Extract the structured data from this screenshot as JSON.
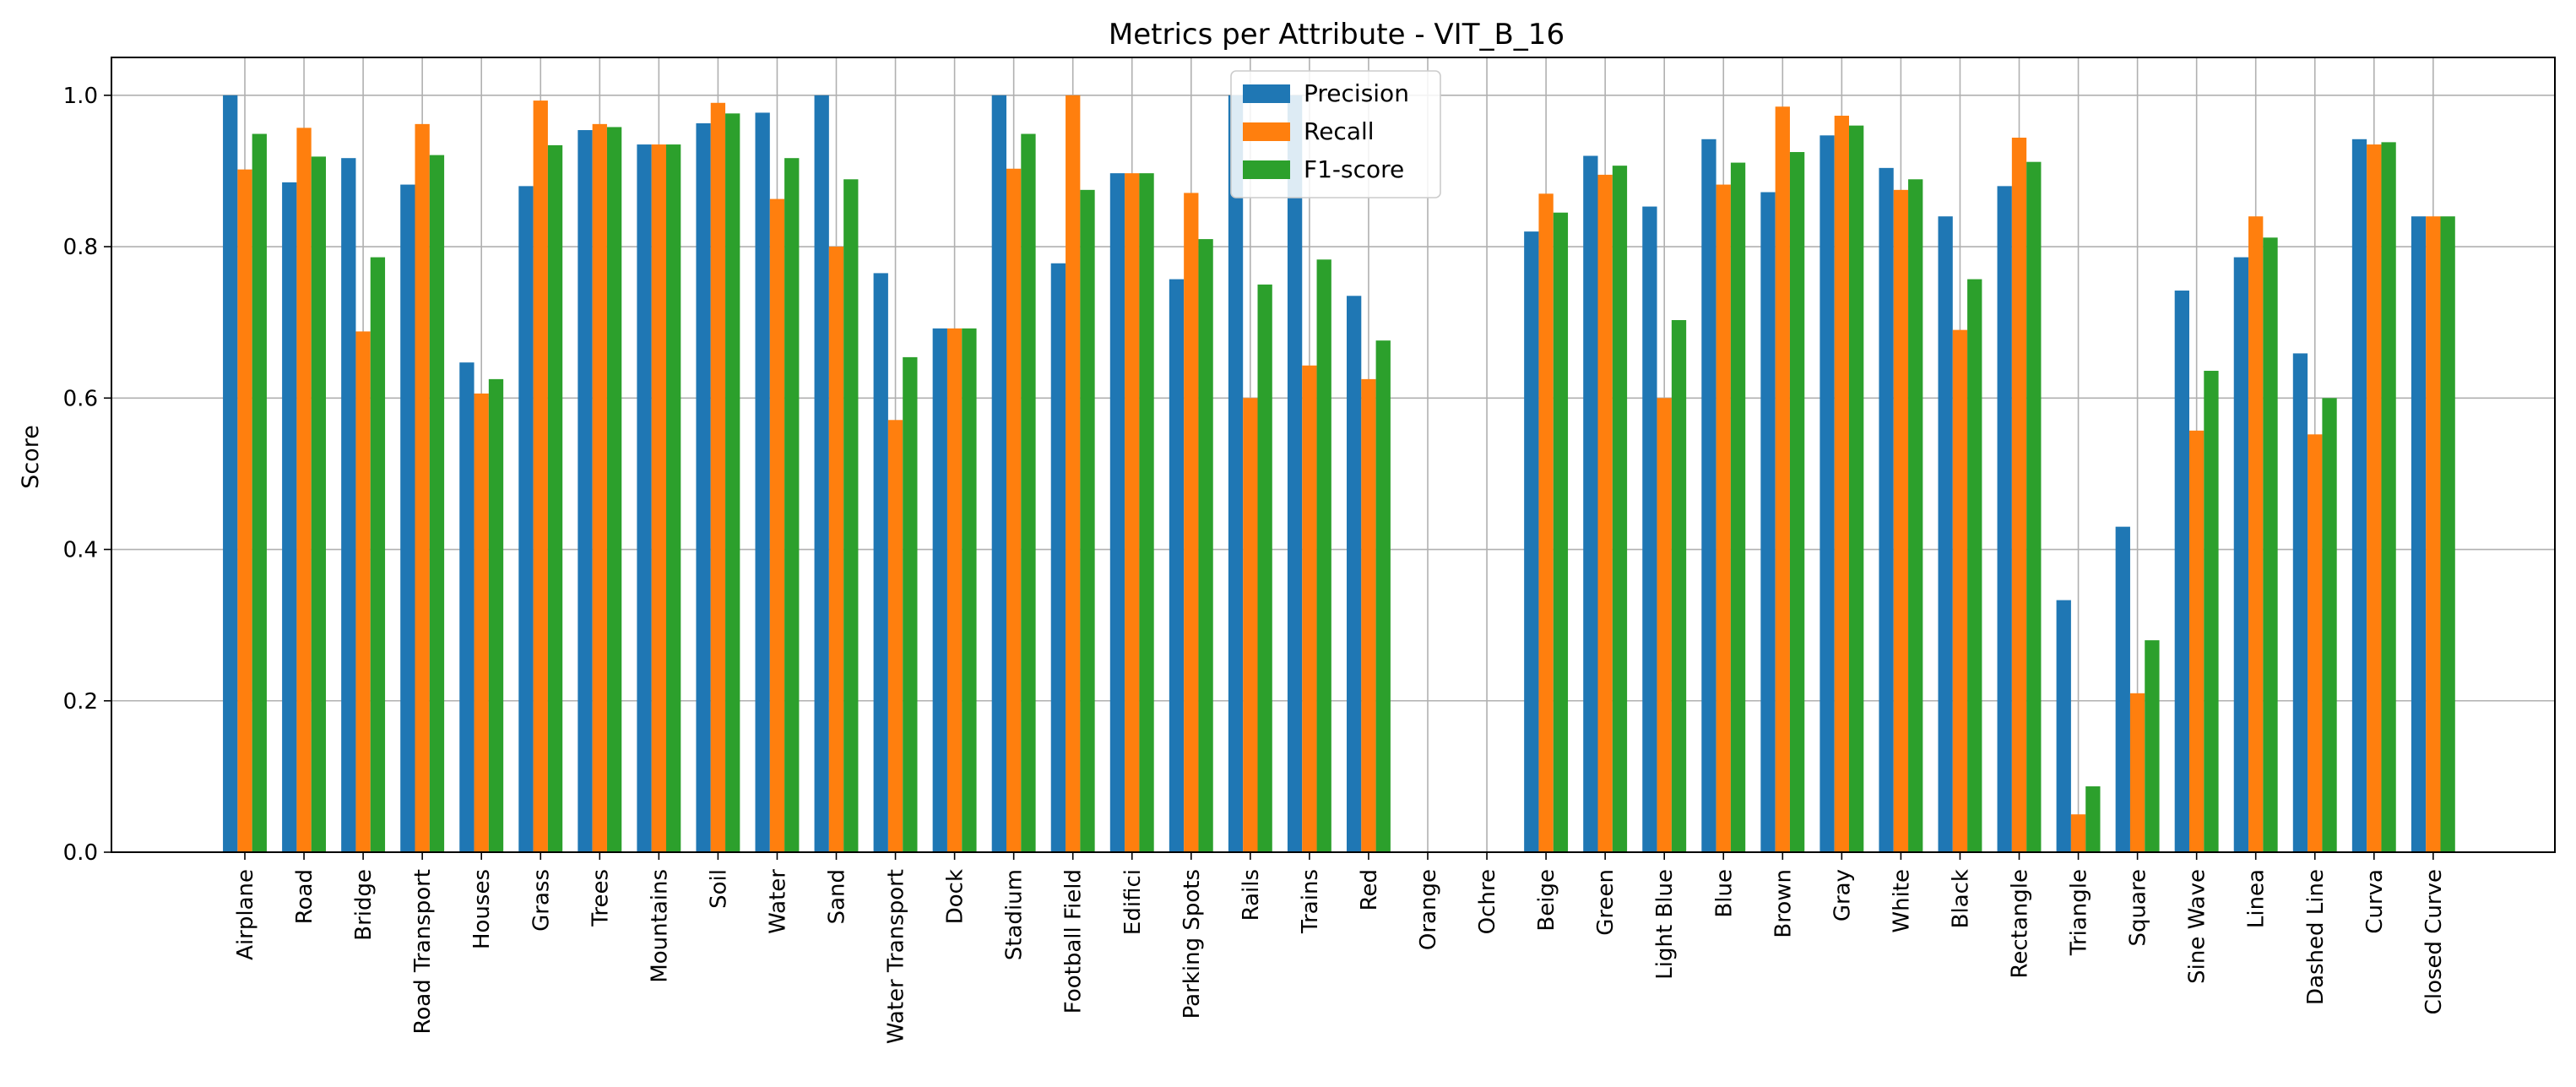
{
  "chart_data": {
    "type": "bar",
    "title": "Metrics per Attribute - VIT_B_16",
    "xlabel": "",
    "ylabel": "Score",
    "ylim": [
      0,
      1.05
    ],
    "yticks": [
      "0.0",
      "0.2",
      "0.4",
      "0.6",
      "0.8",
      "1.0"
    ],
    "grid": true,
    "legend_position": "top-center",
    "categories": [
      "Airplane",
      "Road",
      "Bridge",
      "Road Transport",
      "Houses",
      "Grass",
      "Trees",
      "Mountains",
      "Soil",
      "Water",
      "Sand",
      "Water Transport",
      "Dock",
      "Stadium",
      "Football Field",
      "Edifici",
      "Parking Spots",
      "Rails",
      "Trains",
      "Red",
      "Orange",
      "Ochre",
      "Beige",
      "Green",
      "Light Blue",
      "Blue",
      "Brown",
      "Gray",
      "White",
      "Black",
      "Rectangle",
      "Triangle",
      "Square",
      "Sine Wave",
      "Linea",
      "Dashed Line",
      "Curva",
      "Closed Curve"
    ],
    "series": [
      {
        "name": "Precision",
        "color": "#1f77b4",
        "values": [
          1.0,
          0.885,
          0.917,
          0.882,
          0.647,
          0.88,
          0.954,
          0.935,
          0.963,
          0.977,
          1.0,
          0.765,
          0.692,
          1.0,
          0.778,
          0.897,
          0.757,
          1.0,
          1.0,
          0.735,
          0,
          0,
          0.82,
          0.92,
          0.853,
          0.942,
          0.872,
          0.947,
          0.904,
          0.84,
          0.88,
          0.333,
          0.43,
          0.742,
          0.786,
          0.659,
          0.942,
          0.84
        ]
      },
      {
        "name": "Recall",
        "color": "#ff7f0e",
        "values": [
          0.902,
          0.957,
          0.688,
          0.962,
          0.606,
          0.993,
          0.962,
          0.935,
          0.99,
          0.863,
          0.8,
          0.571,
          0.692,
          0.903,
          1.0,
          0.897,
          0.871,
          0.6,
          0.643,
          0.625,
          0,
          0,
          0.87,
          0.895,
          0.6,
          0.882,
          0.985,
          0.973,
          0.875,
          0.69,
          0.944,
          0.05,
          0.21,
          0.557,
          0.84,
          0.552,
          0.935,
          0.84
        ]
      },
      {
        "name": "F1-score",
        "color": "#2ca02c",
        "values": [
          0.949,
          0.919,
          0.786,
          0.921,
          0.625,
          0.934,
          0.958,
          0.935,
          0.976,
          0.917,
          0.889,
          0.654,
          0.692,
          0.949,
          0.875,
          0.897,
          0.81,
          0.75,
          0.783,
          0.676,
          0,
          0,
          0.845,
          0.907,
          0.703,
          0.911,
          0.925,
          0.96,
          0.889,
          0.757,
          0.912,
          0.087,
          0.28,
          0.636,
          0.812,
          0.6,
          0.938,
          0.84
        ]
      }
    ]
  }
}
